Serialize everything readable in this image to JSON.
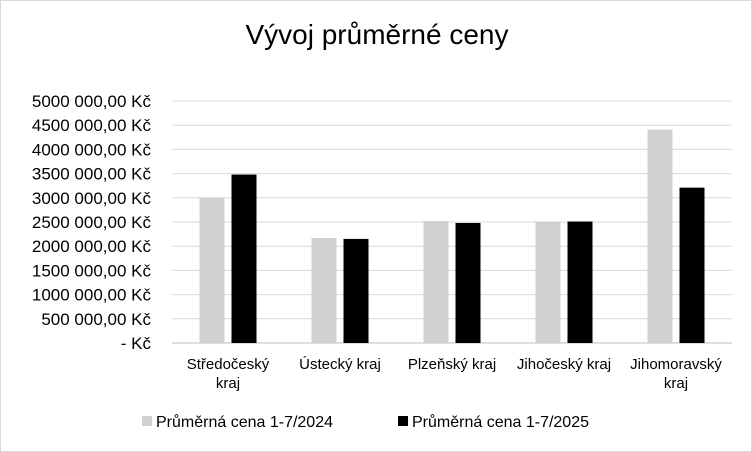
{
  "chart_data": {
    "type": "bar",
    "title": "Vývoj průměrné ceny",
    "xlabel": "",
    "ylabel": "",
    "ylim": [
      0,
      5000000
    ],
    "y_ticks": [
      {
        "value": 0,
        "label": "-   Kč"
      },
      {
        "value": 500000,
        "label": "500 000,00 Kč"
      },
      {
        "value": 1000000,
        "label": "1000 000,00 Kč"
      },
      {
        "value": 1500000,
        "label": "1500 000,00 Kč"
      },
      {
        "value": 2000000,
        "label": "2000 000,00 Kč"
      },
      {
        "value": 2500000,
        "label": "2500 000,00 Kč"
      },
      {
        "value": 3000000,
        "label": "3000 000,00 Kč"
      },
      {
        "value": 3500000,
        "label": "3500 000,00 Kč"
      },
      {
        "value": 4000000,
        "label": "4000 000,00 Kč"
      },
      {
        "value": 4500000,
        "label": "4500 000,00 Kč"
      },
      {
        "value": 5000000,
        "label": "5000 000,00 Kč"
      }
    ],
    "categories": [
      [
        "Středočeský",
        "kraj"
      ],
      [
        "Ústecký kraj"
      ],
      [
        "Plzeňský kraj"
      ],
      [
        "Jihočeský kraj"
      ],
      [
        "Jihomoravský",
        "kraj"
      ]
    ],
    "series": [
      {
        "name": "Průměrná cena 1-7/2024",
        "color": "#d0d0d0",
        "values": [
          3000000,
          2170000,
          2520000,
          2510000,
          4410000
        ]
      },
      {
        "name": "Průměrná cena 1-7/2025",
        "color": "#000000",
        "values": [
          3480000,
          2150000,
          2480000,
          2510000,
          3210000
        ]
      }
    ],
    "grid": true,
    "legend": "bottom"
  }
}
